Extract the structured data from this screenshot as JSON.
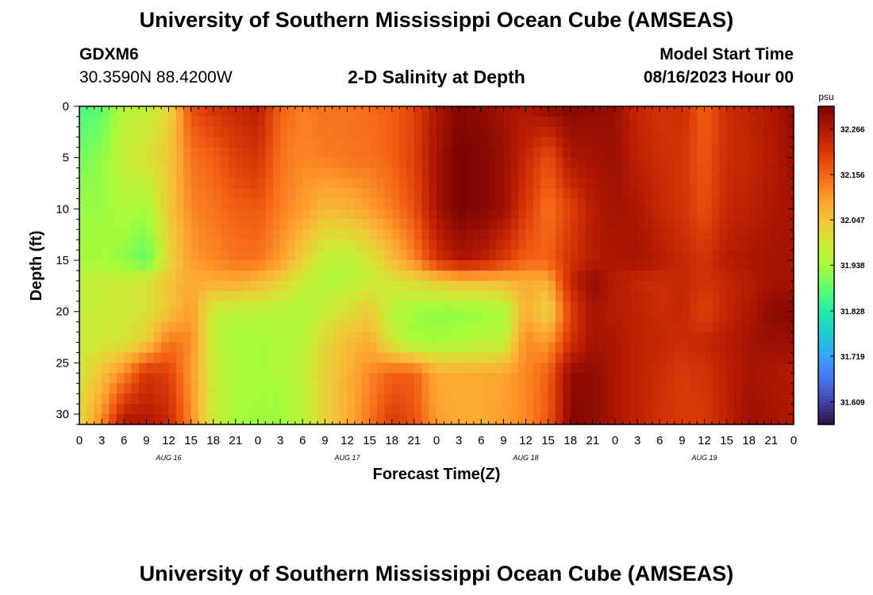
{
  "header": {
    "title": "University of Southern Mississippi Ocean Cube (AMSEAS)",
    "station_id": "GDXM6",
    "coordinates": "30.3590N  88.4200W",
    "plot_title": "2-D Salinity at Depth",
    "model_start_label": "Model Start Time",
    "model_start_value": "08/16/2023 Hour 00"
  },
  "footer": {
    "title": "University of Southern Mississippi Ocean Cube (AMSEAS)"
  },
  "chart_data": {
    "type": "heatmap",
    "xlabel": "Forecast Time(Z)",
    "ylabel": "Depth (ft)",
    "x_range_hours": [
      0,
      96
    ],
    "ylim": [
      0,
      31
    ],
    "y_inverted": true,
    "x_tick_labels": [
      "0",
      "3",
      "6",
      "9",
      "12",
      "15",
      "18",
      "21",
      "0",
      "3",
      "6",
      "9",
      "12",
      "15",
      "18",
      "21",
      "0",
      "3",
      "6",
      "9",
      "12",
      "15",
      "18",
      "21",
      "0",
      "3",
      "6",
      "9",
      "12",
      "15",
      "18",
      "21",
      "0"
    ],
    "y_ticks": [
      0,
      5,
      10,
      15,
      20,
      25,
      30
    ],
    "day_labels": [
      {
        "label": "AUG 16",
        "hour": 12
      },
      {
        "label": "AUG 17",
        "hour": 36
      },
      {
        "label": "AUG 18",
        "hour": 60
      },
      {
        "label": "AUG 19",
        "hour": 84
      }
    ],
    "colorbar": {
      "unit": "psu",
      "min": 31.555,
      "max": 32.32,
      "tick_labels": [
        "32.266",
        "32.156",
        "32.047",
        "31.938",
        "31.828",
        "31.719",
        "31.609"
      ],
      "tick_values": [
        32.266,
        32.156,
        32.047,
        31.938,
        31.828,
        31.719,
        31.609
      ],
      "colormap": [
        "#30123b",
        "#4145ab",
        "#4675ed",
        "#39a2fc",
        "#1bcfd4",
        "#24eca6",
        "#61fc6c",
        "#a4fc3b",
        "#d1e834",
        "#f3c63a",
        "#fe9b2d",
        "#f36315",
        "#d93807",
        "#b11901",
        "#7a0403"
      ]
    },
    "depths_ft": [
      0,
      5,
      10,
      15,
      17,
      20,
      23,
      26,
      31
    ],
    "hours": [
      0,
      3,
      6,
      9,
      12,
      15,
      18,
      21,
      24,
      27,
      30,
      33,
      36,
      39,
      42,
      45,
      48,
      51,
      54,
      57,
      60,
      63,
      66,
      69,
      72,
      75,
      78,
      81,
      84,
      87,
      90,
      93,
      96
    ],
    "salinity_psu": [
      [
        31.86,
        31.88,
        31.96,
        31.97,
        32.02,
        32.18,
        32.22,
        32.24,
        32.26,
        32.16,
        32.13,
        32.14,
        32.14,
        32.15,
        32.16,
        32.2,
        32.27,
        32.31,
        32.3,
        32.28,
        32.27,
        32.3,
        32.31,
        32.3,
        32.29,
        32.24,
        32.22,
        32.23,
        32.16,
        32.23,
        32.25,
        32.27,
        32.3
      ],
      [
        31.9,
        31.92,
        31.98,
        32.0,
        32.04,
        32.14,
        32.16,
        32.2,
        32.22,
        32.14,
        32.12,
        32.13,
        32.14,
        32.14,
        32.16,
        32.2,
        32.28,
        32.32,
        32.31,
        32.29,
        32.24,
        32.18,
        32.27,
        32.28,
        32.29,
        32.25,
        32.23,
        32.22,
        32.17,
        32.23,
        32.24,
        32.26,
        32.29
      ],
      [
        31.93,
        31.93,
        31.95,
        31.94,
        32.04,
        32.12,
        32.14,
        32.16,
        32.17,
        32.13,
        32.1,
        32.06,
        32.07,
        32.1,
        32.13,
        32.18,
        32.28,
        32.32,
        32.31,
        32.29,
        32.21,
        32.14,
        32.2,
        32.26,
        32.28,
        32.27,
        32.24,
        32.22,
        32.18,
        32.24,
        32.25,
        32.27,
        32.28
      ],
      [
        31.94,
        31.94,
        31.92,
        31.88,
        32.02,
        32.1,
        32.12,
        32.14,
        32.14,
        32.1,
        32.03,
        31.97,
        31.96,
        31.99,
        32.06,
        32.12,
        32.22,
        32.27,
        32.26,
        32.21,
        32.16,
        32.16,
        32.22,
        32.26,
        32.27,
        32.28,
        32.26,
        32.24,
        32.22,
        32.26,
        32.27,
        32.28,
        32.28
      ],
      [
        31.97,
        31.98,
        31.98,
        32.0,
        32.05,
        32.08,
        32.08,
        32.09,
        32.07,
        32.03,
        31.98,
        31.95,
        31.96,
        31.98,
        32.0,
        32.02,
        32.04,
        32.06,
        32.06,
        32.07,
        32.08,
        32.08,
        32.24,
        32.3,
        32.26,
        32.24,
        32.23,
        32.24,
        32.22,
        32.24,
        32.26,
        32.28,
        32.28
      ],
      [
        31.97,
        31.98,
        31.99,
        32.0,
        32.05,
        32.1,
        31.98,
        31.96,
        31.96,
        31.96,
        31.95,
        31.98,
        32.01,
        32.04,
        31.96,
        31.93,
        31.92,
        31.92,
        31.93,
        31.94,
        32.08,
        32.02,
        32.2,
        32.28,
        32.26,
        32.25,
        32.23,
        32.24,
        32.2,
        32.24,
        32.27,
        32.3,
        32.31
      ],
      [
        31.98,
        31.99,
        32.0,
        32.04,
        32.14,
        32.12,
        31.97,
        31.94,
        31.94,
        31.95,
        31.96,
        32.02,
        32.06,
        32.08,
        31.99,
        31.94,
        31.94,
        31.95,
        31.96,
        31.97,
        32.12,
        32.1,
        32.22,
        32.28,
        32.27,
        32.25,
        32.24,
        32.23,
        32.24,
        32.26,
        32.28,
        32.29,
        32.29
      ],
      [
        32.0,
        32.05,
        32.12,
        32.22,
        32.2,
        32.1,
        31.98,
        31.95,
        31.94,
        31.95,
        31.97,
        32.03,
        32.07,
        32.12,
        32.16,
        32.16,
        32.08,
        32.08,
        32.08,
        32.09,
        32.12,
        32.16,
        32.3,
        32.3,
        32.27,
        32.25,
        32.23,
        32.21,
        32.22,
        32.25,
        32.28,
        32.27,
        32.26
      ],
      [
        32.02,
        32.12,
        32.28,
        32.27,
        32.24,
        32.12,
        31.98,
        31.94,
        31.93,
        31.93,
        31.96,
        32.03,
        32.08,
        32.14,
        32.21,
        32.18,
        32.1,
        32.08,
        32.08,
        32.1,
        32.12,
        32.17,
        32.31,
        32.3,
        32.27,
        32.25,
        32.22,
        32.21,
        32.21,
        32.25,
        32.29,
        32.28,
        32.27
      ]
    ]
  }
}
